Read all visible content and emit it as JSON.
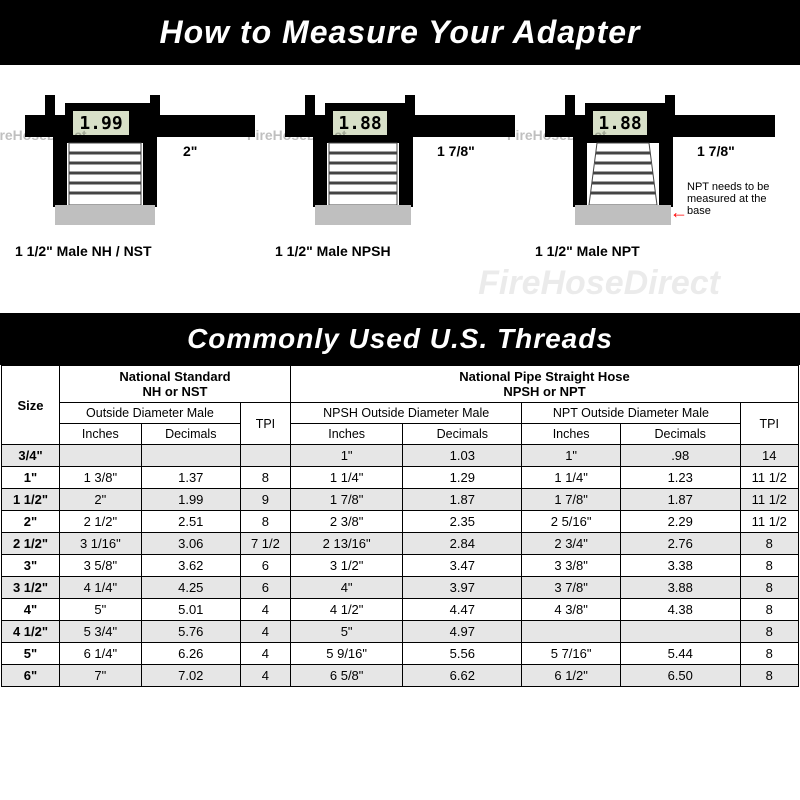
{
  "title_top": "How to Measure Your Adapter",
  "title_mid": "Commonly Used U.S. Threads",
  "diagrams": [
    {
      "reading": "1.99",
      "size_label": "2\"",
      "thread_label": "1 1/2\" Male NH / NST",
      "watermark": "FireHoseDirect",
      "note": ""
    },
    {
      "reading": "1.88",
      "size_label": "1 7/8\"",
      "thread_label": "1 1/2\" Male NPSH",
      "watermark": "FireHoseDirect",
      "note": ""
    },
    {
      "reading": "1.88",
      "size_label": "1 7/8\"",
      "thread_label": "1 1/2\" Male NPT",
      "watermark": "FireHoseDirect",
      "note": "NPT needs to be measured at the base"
    }
  ],
  "big_watermark": "FireHoseDirect",
  "table": {
    "size_header": "Size",
    "group_nh": {
      "top": "National Standard",
      "sub": "NH or NST"
    },
    "group_np": {
      "top": "National Pipe Straight Hose",
      "sub": "NPSH or NPT"
    },
    "nh_od_label": "Outside Diameter Male",
    "tpi_label": "TPI",
    "npsh_od_label": "NPSH Outside Diameter Male",
    "npt_od_label": "NPT Outside Diameter Male",
    "inches_label": "Inches",
    "decimals_label": "Decimals",
    "rows": [
      {
        "size": "3/4\"",
        "nh_in": "",
        "nh_dec": "",
        "nh_tpi": "",
        "npsh_in": "1\"",
        "npsh_dec": "1.03",
        "npt_in": "1\"",
        "npt_dec": ".98",
        "np_tpi": "14"
      },
      {
        "size": "1\"",
        "nh_in": "1 3/8\"",
        "nh_dec": "1.37",
        "nh_tpi": "8",
        "npsh_in": "1 1/4\"",
        "npsh_dec": "1.29",
        "npt_in": "1 1/4\"",
        "npt_dec": "1.23",
        "np_tpi": "11 1/2"
      },
      {
        "size": "1 1/2\"",
        "nh_in": "2\"",
        "nh_dec": "1.99",
        "nh_tpi": "9",
        "npsh_in": "1 7/8\"",
        "npsh_dec": "1.87",
        "npt_in": "1 7/8\"",
        "npt_dec": "1.87",
        "np_tpi": "11 1/2"
      },
      {
        "size": "2\"",
        "nh_in": "2 1/2\"",
        "nh_dec": "2.51",
        "nh_tpi": "8",
        "npsh_in": "2 3/8\"",
        "npsh_dec": "2.35",
        "npt_in": "2 5/16\"",
        "npt_dec": "2.29",
        "np_tpi": "11 1/2"
      },
      {
        "size": "2 1/2\"",
        "nh_in": "3 1/16\"",
        "nh_dec": "3.06",
        "nh_tpi": "7 1/2",
        "npsh_in": "2 13/16\"",
        "npsh_dec": "2.84",
        "npt_in": "2 3/4\"",
        "npt_dec": "2.76",
        "np_tpi": "8"
      },
      {
        "size": "3\"",
        "nh_in": "3 5/8\"",
        "nh_dec": "3.62",
        "nh_tpi": "6",
        "npsh_in": "3 1/2\"",
        "npsh_dec": "3.47",
        "npt_in": "3 3/8\"",
        "npt_dec": "3.38",
        "np_tpi": "8"
      },
      {
        "size": "3 1/2\"",
        "nh_in": "4 1/4\"",
        "nh_dec": "4.25",
        "nh_tpi": "6",
        "npsh_in": "4\"",
        "npsh_dec": "3.97",
        "npt_in": "3 7/8\"",
        "npt_dec": "3.88",
        "np_tpi": "8"
      },
      {
        "size": "4\"",
        "nh_in": "5\"",
        "nh_dec": "5.01",
        "nh_tpi": "4",
        "npsh_in": "4 1/2\"",
        "npsh_dec": "4.47",
        "npt_in": "4 3/8\"",
        "npt_dec": "4.38",
        "np_tpi": "8"
      },
      {
        "size": "4 1/2\"",
        "nh_in": "5 3/4\"",
        "nh_dec": "5.76",
        "nh_tpi": "4",
        "npsh_in": "5\"",
        "npsh_dec": "4.97",
        "npt_in": "",
        "npt_dec": "",
        "np_tpi": "8"
      },
      {
        "size": "5\"",
        "nh_in": "6 1/4\"",
        "nh_dec": "6.26",
        "nh_tpi": "4",
        "npsh_in": "5 9/16\"",
        "npsh_dec": "5.56",
        "npt_in": "5 7/16\"",
        "npt_dec": "5.44",
        "np_tpi": "8"
      },
      {
        "size": "6\"",
        "nh_in": "7\"",
        "nh_dec": "7.02",
        "nh_tpi": "4",
        "npsh_in": "6 5/8\"",
        "npsh_dec": "6.62",
        "npt_in": "6 1/2\"",
        "npt_dec": "6.50",
        "np_tpi": "8"
      }
    ]
  },
  "colors": {
    "banner_bg": "#000000",
    "banner_fg": "#ffffff",
    "shade_bg": "#e6e6e6",
    "border": "#000000",
    "arrow": "#ff0000",
    "caliper_fill": "#000000",
    "thread_fill": "#ffffff",
    "thread_stroke": "#444444",
    "base_fill": "#bfbfbf",
    "lcd_bg": "#d8e0c8",
    "lcd_text": "#000000"
  }
}
